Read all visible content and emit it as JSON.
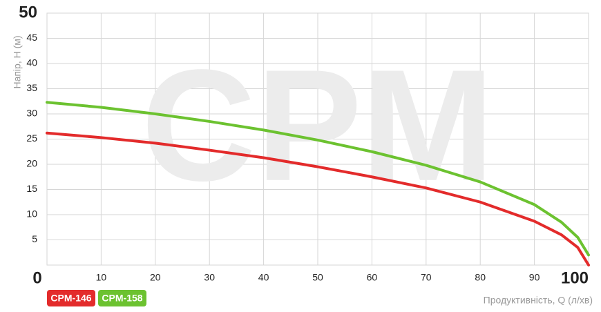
{
  "chart_data": {
    "type": "line",
    "watermark": "CPM",
    "y_label": "Напір, Н (м)",
    "x_label": "Продуктивність, Q (л/хв)",
    "x": [
      0,
      10,
      20,
      30,
      40,
      50,
      60,
      70,
      80,
      90,
      95,
      98,
      100
    ],
    "series": [
      {
        "name": "CPM-146",
        "color": "#e32b2b",
        "values": [
          26.2,
          25.3,
          24.2,
          22.8,
          21.3,
          19.5,
          17.5,
          15.3,
          12.5,
          8.7,
          6,
          3.5,
          0
        ]
      },
      {
        "name": "CPM-158",
        "color": "#6cc230",
        "values": [
          32.3,
          31.3,
          30,
          28.5,
          26.8,
          24.8,
          22.5,
          19.8,
          16.5,
          12,
          8.5,
          5.5,
          2
        ]
      }
    ],
    "xlim": [
      0,
      100
    ],
    "ylim": [
      0,
      50
    ],
    "xticks": [
      0,
      10,
      20,
      30,
      40,
      50,
      60,
      70,
      80,
      90,
      100
    ],
    "yticks": [
      5,
      10,
      15,
      20,
      25,
      30,
      35,
      40,
      45,
      50
    ],
    "grid": true
  }
}
